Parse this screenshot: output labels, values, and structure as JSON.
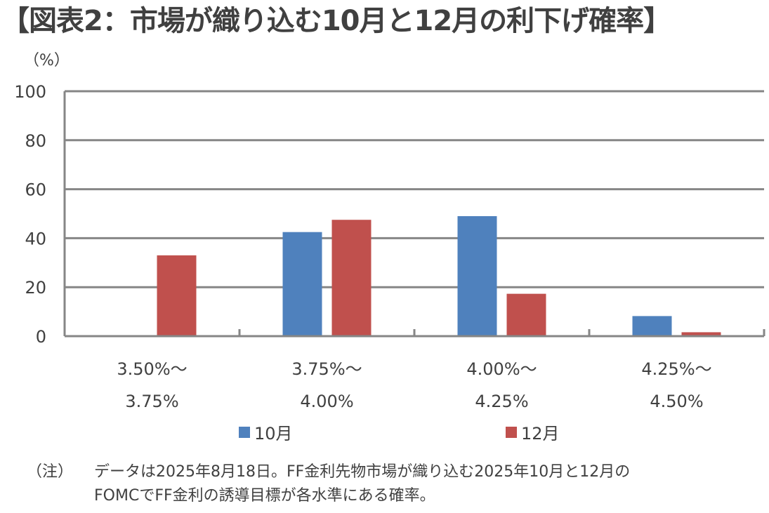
{
  "title": "【図表2：市場が織り込む10月と12月の利下げ確率】",
  "unit_label": "（%）",
  "chart_data": {
    "type": "bar",
    "categories": [
      [
        "3.50%～",
        "3.75%"
      ],
      [
        "3.75%～",
        "4.00%"
      ],
      [
        "4.00%～",
        "4.25%"
      ],
      [
        "4.25%～",
        "4.50%"
      ]
    ],
    "series": [
      {
        "name": "10月",
        "values": [
          0,
          42.5,
          49,
          8.2
        ],
        "color": "#4f81bd"
      },
      {
        "name": "12月",
        "values": [
          33,
          47.5,
          17.3,
          1.6
        ],
        "color": "#c0504d"
      }
    ],
    "ylim": [
      0,
      100
    ],
    "yticks": [
      0,
      20,
      40,
      60,
      80,
      100
    ],
    "grid": true,
    "legend_position": "bottom"
  },
  "note": {
    "label": "（注）",
    "lines": [
      "データは2025年8月18日。FF金利先物市場が織り込む2025年10月と12月の",
      "FOMCでFF金利の誘導目標が各水準にある確率。"
    ]
  }
}
